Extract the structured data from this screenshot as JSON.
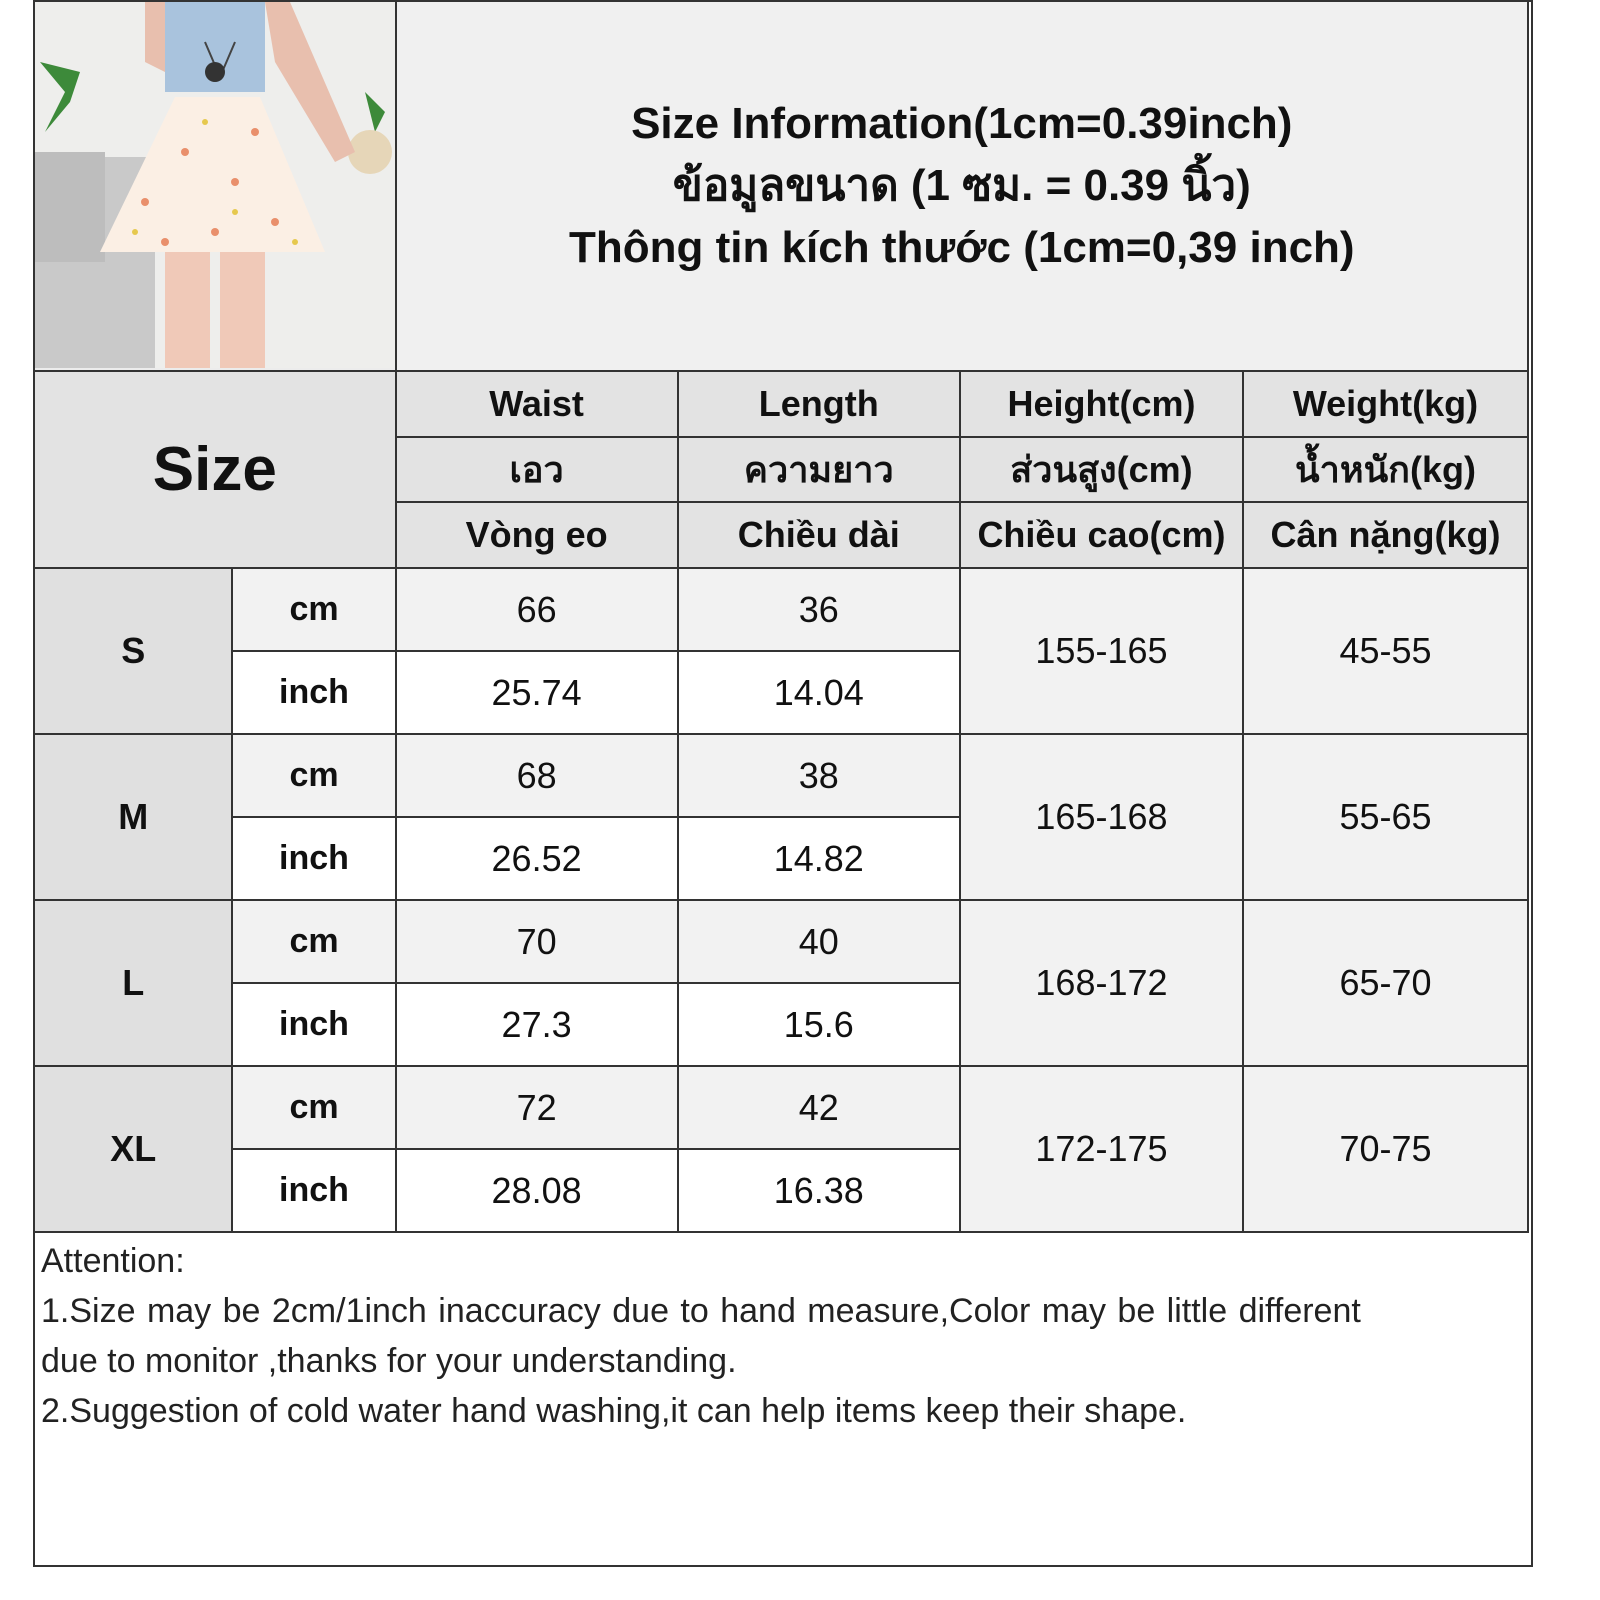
{
  "title_lines": [
    "Size Information(1cm=0.39inch)",
    "ข้อมูลขนาด (1 ซม. = 0.39 นิ้ว)",
    "Thông tin kích thước (1cm=0,39 inch)"
  ],
  "size_header": "Size",
  "columns": [
    {
      "en": "Waist",
      "th": "เอว",
      "vi": "Vòng eo"
    },
    {
      "en": "Length",
      "th": "ความยาว",
      "vi": "Chiều dài"
    },
    {
      "en": "Height(cm)",
      "th": "ส่วนสูง(cm)",
      "vi": "Chiều cao(cm)"
    },
    {
      "en": "Weight(kg)",
      "th": "น้ำหนัก(kg)",
      "vi": "Cân nặng(kg)"
    }
  ],
  "units": {
    "cm": "cm",
    "inch": "inch"
  },
  "rows": [
    {
      "size": "S",
      "waist_cm": "66",
      "length_cm": "36",
      "waist_in": "25.74",
      "length_in": "14.04",
      "height": "155-165",
      "weight": "45-55"
    },
    {
      "size": "M",
      "waist_cm": "68",
      "length_cm": "38",
      "waist_in": "26.52",
      "length_in": "14.82",
      "height": "165-168",
      "weight": "55-65"
    },
    {
      "size": "L",
      "waist_cm": "70",
      "length_cm": "40",
      "waist_in": "27.3",
      "length_in": "15.6",
      "height": "168-172",
      "weight": "65-70"
    },
    {
      "size": "XL",
      "waist_cm": "72",
      "length_cm": "42",
      "waist_in": "28.08",
      "length_in": "16.38",
      "height": "172-175",
      "weight": "70-75"
    }
  ],
  "notes": [
    "Attention:",
    "1.Size may be 2cm/1inch inaccuracy due to hand measure,Color may be little different",
    "due to monitor ,thanks for your understanding.",
    "2.Suggestion of cold water hand washing,it can help items keep their shape."
  ]
}
